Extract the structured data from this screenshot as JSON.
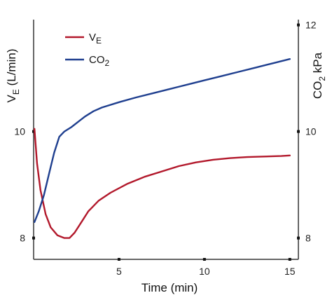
{
  "chart_data": {
    "type": "line",
    "x_axis": {
      "label": "Time (min)",
      "range": [
        0,
        15.5
      ],
      "ticks": [
        5,
        10,
        15
      ]
    },
    "y_left": {
      "label_main": "V",
      "label_sub": "E",
      "label_rest": " (L/min)",
      "range": [
        7.6,
        12.1
      ],
      "ticks": [
        8,
        10
      ]
    },
    "y_right": {
      "label_main": "CO",
      "label_sub": "2",
      "label_rest": " kPa",
      "range": [
        7.6,
        12.1
      ],
      "ticks": [
        8,
        10,
        12
      ]
    },
    "legend": {
      "placement": "top-left"
    },
    "series": [
      {
        "name": "VE",
        "legend_main": "V",
        "legend_sub": "E",
        "axis": "left",
        "color": "#b2182b",
        "points": [
          [
            0.05,
            10.05
          ],
          [
            0.2,
            9.4
          ],
          [
            0.4,
            8.9
          ],
          [
            0.7,
            8.45
          ],
          [
            1.0,
            8.2
          ],
          [
            1.4,
            8.05
          ],
          [
            1.8,
            8.0
          ],
          [
            2.1,
            8.0
          ],
          [
            2.4,
            8.1
          ],
          [
            2.8,
            8.3
          ],
          [
            3.2,
            8.5
          ],
          [
            3.8,
            8.7
          ],
          [
            4.5,
            8.85
          ],
          [
            5.5,
            9.02
          ],
          [
            6.5,
            9.15
          ],
          [
            7.5,
            9.25
          ],
          [
            8.5,
            9.35
          ],
          [
            9.5,
            9.42
          ],
          [
            10.5,
            9.47
          ],
          [
            11.5,
            9.5
          ],
          [
            12.5,
            9.52
          ],
          [
            13.5,
            9.53
          ],
          [
            14.5,
            9.54
          ],
          [
            15,
            9.55
          ]
        ]
      },
      {
        "name": "CO2",
        "legend_main": "CO",
        "legend_sub": "2",
        "axis": "right",
        "color": "#1f3f8f",
        "points": [
          [
            0.05,
            8.3
          ],
          [
            0.3,
            8.5
          ],
          [
            0.6,
            8.8
          ],
          [
            0.9,
            9.2
          ],
          [
            1.2,
            9.6
          ],
          [
            1.5,
            9.9
          ],
          [
            1.8,
            10.0
          ],
          [
            2.2,
            10.08
          ],
          [
            2.6,
            10.18
          ],
          [
            3.0,
            10.28
          ],
          [
            3.5,
            10.38
          ],
          [
            4.0,
            10.45
          ],
          [
            5.0,
            10.55
          ],
          [
            6.0,
            10.64
          ],
          [
            7.0,
            10.72
          ],
          [
            8.0,
            10.8
          ],
          [
            9.0,
            10.88
          ],
          [
            10.0,
            10.96
          ],
          [
            11.0,
            11.04
          ],
          [
            12.0,
            11.12
          ],
          [
            13.0,
            11.2
          ],
          [
            14.0,
            11.28
          ],
          [
            15.0,
            11.36
          ]
        ]
      }
    ]
  }
}
